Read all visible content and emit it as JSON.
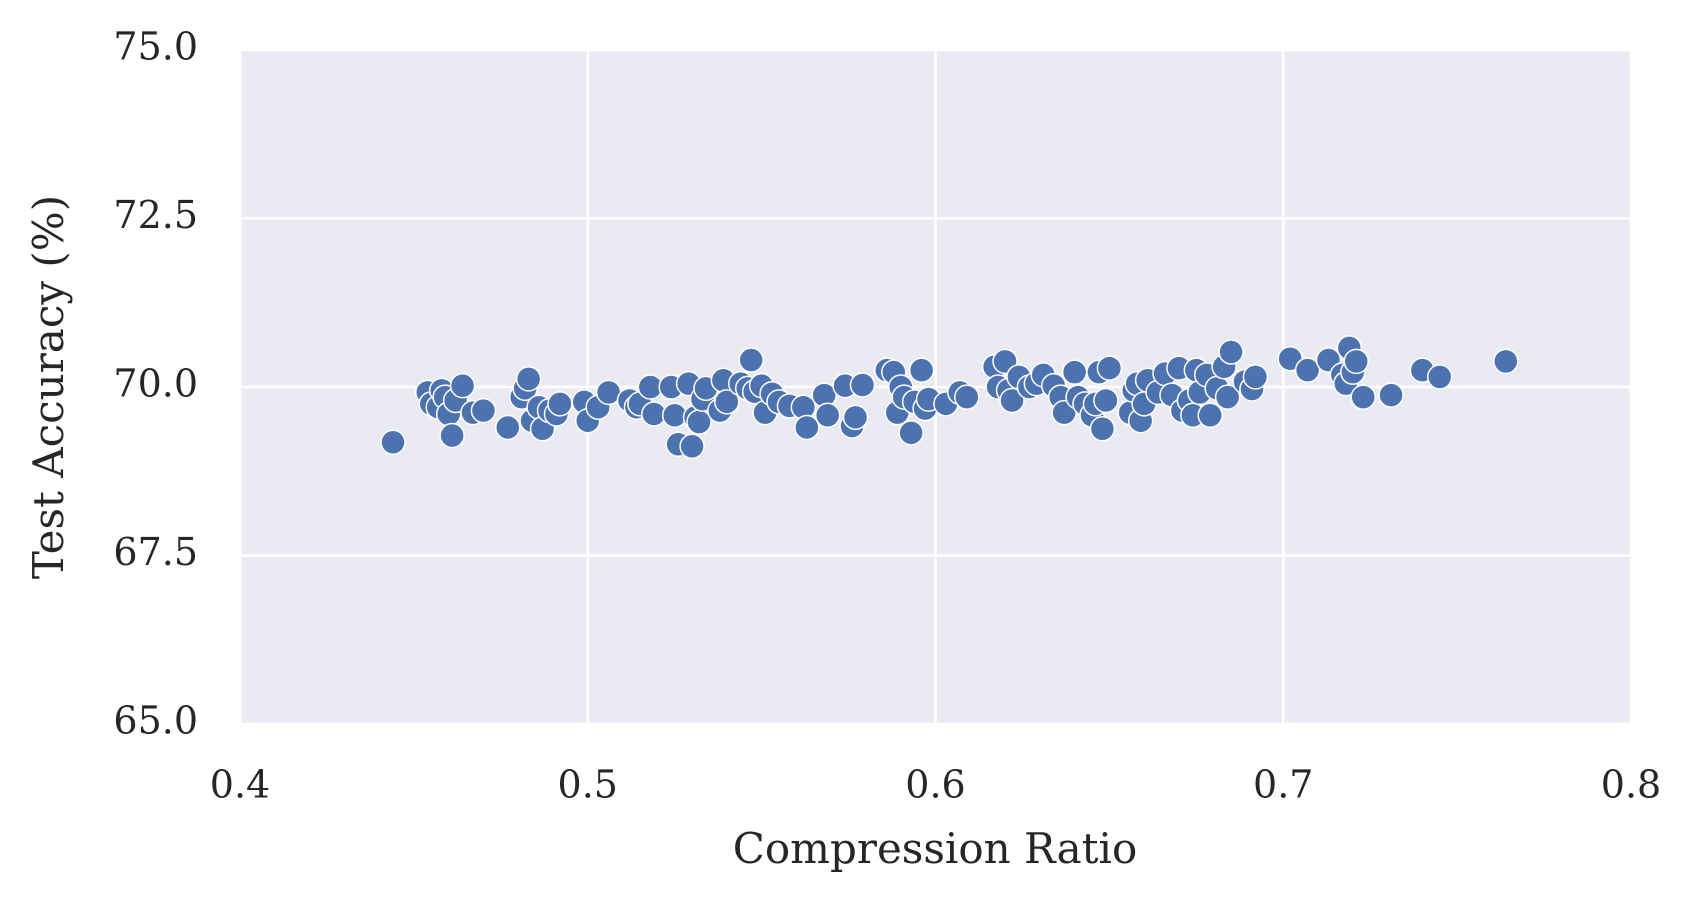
{
  "chart_data": {
    "type": "scatter",
    "x_label": "Compression Ratio",
    "y_label": "Test Accuracy (%)",
    "xlim": [
      0.4,
      0.8
    ],
    "xticks": [
      0.4,
      0.5,
      0.6,
      0.7,
      0.8
    ],
    "ylim": [
      65,
      75
    ],
    "yticks": [
      {
        "value": 65,
        "label": "65.0"
      },
      67.5,
      {
        "value": 70,
        "label": "70.0"
      },
      72.5,
      {
        "value": 75,
        "label": "75.0"
      }
    ],
    "grid": true,
    "color": "#4c72b0",
    "x": [
      0.444,
      0.454,
      0.455,
      0.457,
      0.458,
      0.459,
      0.46,
      0.461,
      0.462,
      0.464,
      0.467,
      0.47,
      0.477,
      0.481,
      0.482,
      0.483,
      0.484,
      0.486,
      0.487,
      0.489,
      0.491,
      0.492,
      0.499,
      0.5,
      0.503,
      0.506,
      0.512,
      0.514,
      0.515,
      0.518,
      0.519,
      0.524,
      0.525,
      0.526,
      0.529,
      0.53,
      0.531,
      0.532,
      0.533,
      0.534,
      0.538,
      0.539,
      0.54,
      0.544,
      0.546,
      0.547,
      0.548,
      0.55,
      0.551,
      0.553,
      0.555,
      0.558,
      0.562,
      0.563,
      0.568,
      0.569,
      0.574,
      0.576,
      0.577,
      0.579,
      0.586,
      0.588,
      0.589,
      0.59,
      0.591,
      0.593,
      0.594,
      0.596,
      0.597,
      0.598,
      0.603,
      0.607,
      0.609,
      0.617,
      0.618,
      0.62,
      0.621,
      0.622,
      0.624,
      0.627,
      0.629,
      0.631,
      0.634,
      0.636,
      0.637,
      0.64,
      0.641,
      0.643,
      0.645,
      0.646,
      0.647,
      0.648,
      0.649,
      0.65,
      0.656,
      0.657,
      0.658,
      0.659,
      0.66,
      0.661,
      0.664,
      0.666,
      0.668,
      0.67,
      0.671,
      0.673,
      0.674,
      0.675,
      0.676,
      0.678,
      0.679,
      0.681,
      0.683,
      0.684,
      0.685,
      0.689,
      0.691,
      0.692,
      0.702,
      0.707,
      0.713,
      0.717,
      0.718,
      0.719,
      0.72,
      0.721,
      0.723,
      0.731,
      0.74,
      0.745,
      0.764
    ],
    "values": [
      69.18,
      69.92,
      69.75,
      69.7,
      69.95,
      69.85,
      69.6,
      69.28,
      69.8,
      70.02,
      69.62,
      69.65,
      69.4,
      69.85,
      69.98,
      70.12,
      69.5,
      69.7,
      69.38,
      69.65,
      69.6,
      69.75,
      69.78,
      69.5,
      69.7,
      69.92,
      69.8,
      69.7,
      69.75,
      70.0,
      69.6,
      70.0,
      69.58,
      69.15,
      70.05,
      69.12,
      69.55,
      69.48,
      69.82,
      69.98,
      69.65,
      70.1,
      69.78,
      70.05,
      69.98,
      70.4,
      69.93,
      70.02,
      69.62,
      69.9,
      69.78,
      69.72,
      69.7,
      69.4,
      69.88,
      69.58,
      70.02,
      69.42,
      69.55,
      70.03,
      70.25,
      70.22,
      69.62,
      70.0,
      69.85,
      69.32,
      69.78,
      70.25,
      69.68,
      69.82,
      69.75,
      69.92,
      69.85,
      70.3,
      70.0,
      70.38,
      69.95,
      69.8,
      70.15,
      70.0,
      70.05,
      70.18,
      70.02,
      69.85,
      69.62,
      70.22,
      69.85,
      69.75,
      69.58,
      69.75,
      70.22,
      69.38,
      69.8,
      70.28,
      69.62,
      69.95,
      70.05,
      69.5,
      69.75,
      70.1,
      69.92,
      70.2,
      69.88,
      70.28,
      69.65,
      69.8,
      69.58,
      70.25,
      69.92,
      70.18,
      69.58,
      69.98,
      70.3,
      69.85,
      70.52,
      70.08,
      69.97,
      70.15,
      70.42,
      70.25,
      70.4,
      70.18,
      70.05,
      70.58,
      70.22,
      70.38,
      69.85,
      69.88,
      70.25,
      70.15,
      70.38
    ]
  }
}
